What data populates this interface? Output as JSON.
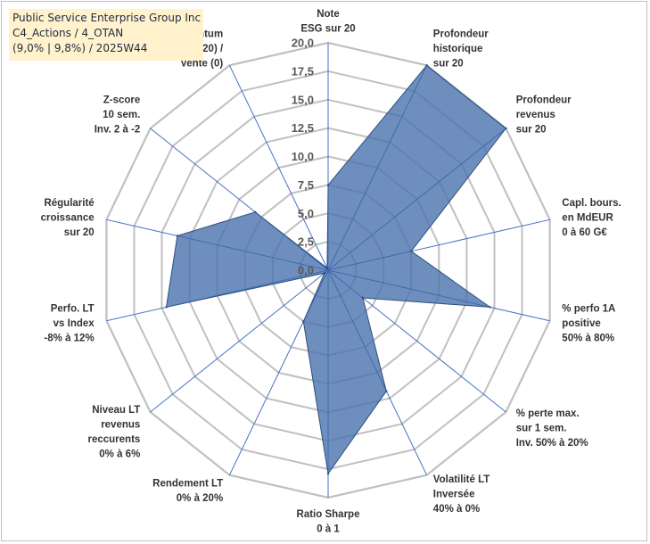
{
  "title_box": {
    "line1": "Public Service Enterprise Group Inc",
    "line2": "C4_Actions / 4_OTAN",
    "line3": "(9,0% | 9,8%) / 2025W44"
  },
  "colors": {
    "fill": "#4a72ac",
    "fill_opacity": 0.8,
    "outline": "#2e4f7f",
    "spoke": "#4472c4",
    "grid": "#c0c0c0",
    "title_bg": "#fff2cc"
  },
  "chart_data": {
    "type": "radar",
    "rmin": 0,
    "rmax": 20,
    "tick_step": 2.5,
    "tick_labels": [
      "0,0",
      "2,5",
      "5,0",
      "7,5",
      "10,0",
      "12,5",
      "15,0",
      "17,5",
      "20,0"
    ],
    "axes": [
      {
        "label": [
          "Note",
          "ESG sur 20"
        ],
        "value": 7.5
      },
      {
        "label": [
          "Profondeur",
          "historique",
          "sur 20"
        ],
        "value": 20
      },
      {
        "label": [
          "Profondeur",
          "revenus",
          "sur 20"
        ],
        "value": 20
      },
      {
        "label": [
          "Capl. bours.",
          "en MdEUR",
          "0 à 60 G€"
        ],
        "value": 7.5
      },
      {
        "label": [
          "% perfo 1A",
          "positive",
          "50% à 80%"
        ],
        "value": 14.6
      },
      {
        "label": [
          "% perte max.",
          "sur 1 sem.",
          "Inv. 50% à 20%"
        ],
        "value": 3.9
      },
      {
        "label": [
          "Volatilité LT",
          "Inversée",
          "40% à 0%"
        ],
        "value": 11.8
      },
      {
        "label": [
          "Ratio Sharpe",
          "0 à 1"
        ],
        "value": 17.9
      },
      {
        "label": [
          "Rendement LT",
          "0% à 20%"
        ],
        "value": 5.0
      },
      {
        "label": [
          "Niveau LT",
          "revenus",
          "reccurents",
          "0% à 6%"
        ],
        "value": 0.4
      },
      {
        "label": [
          "Perfo. LT",
          "vs Index",
          "-8% à 12%"
        ],
        "value": 14.6
      },
      {
        "label": [
          "Régularité",
          "croissance",
          "sur 20"
        ],
        "value": 13.6
      },
      {
        "label": [
          "Z-score",
          "10 sem.",
          "Inv. 2 à -2"
        ],
        "value": 8.2
      },
      {
        "label": [
          "Momentum",
          "Achat (20) /",
          "Vente (0)"
        ],
        "value": 0.2
      }
    ]
  }
}
